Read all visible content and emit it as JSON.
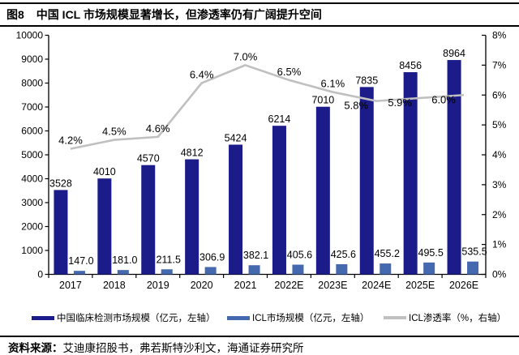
{
  "header": {
    "figure_label": "图8",
    "title": "中国 ICL 市场规模显著增长，但渗透率仍有广阔提升空间"
  },
  "footer": {
    "source_label": "资料来源：",
    "source_text": "艾迪康招股书，弗若斯特沙利文，海通证券研究所"
  },
  "colors": {
    "dark_bar": "#1b1b8a",
    "light_bar": "#4569ae",
    "trend_line": "#c0c0c0",
    "text": "#000000",
    "rule": "#000000"
  },
  "chart_data": {
    "type": "bar",
    "subtype": "grouped-bar-with-line-overlay",
    "categories": [
      "2017",
      "2018",
      "2019",
      "2020",
      "2021",
      "2022E",
      "2023E",
      "2024E",
      "2025E",
      "2026E"
    ],
    "series": [
      {
        "name": "中国临床检测市场规模（亿元，左轴）",
        "type": "bar",
        "axis": "left",
        "values": [
          3528,
          4010,
          4570,
          4812,
          5424,
          6214,
          7010,
          7835,
          8456,
          8964
        ],
        "labels": [
          "3528",
          "4010",
          "4570",
          "4812",
          "5424",
          "6214",
          "7010",
          "7835",
          "8456",
          "8964"
        ]
      },
      {
        "name": "ICL市场规模（亿元，左轴）",
        "type": "bar",
        "axis": "left",
        "values": [
          147.0,
          181.0,
          211.5,
          306.9,
          382.1,
          405.6,
          425.6,
          455.2,
          495.5,
          535.5
        ],
        "labels": [
          "147.0",
          "181.0",
          "211.5",
          "306.9",
          "382.1",
          "405.6",
          "425.6",
          "455.2",
          "495.5",
          "535.5"
        ]
      },
      {
        "name": "ICL渗透率（%，右轴）",
        "type": "line",
        "axis": "right",
        "values": [
          4.2,
          4.5,
          4.6,
          6.4,
          7.0,
          6.5,
          6.1,
          5.8,
          5.9,
          6.0
        ],
        "labels": [
          "4.2%",
          "4.5%",
          "4.6%",
          "6.4%",
          "7.0%",
          "6.5%",
          "6.1%",
          "5.8%",
          "5.9%",
          "6.0%"
        ],
        "labels_below_indices": [
          7,
          8,
          9
        ]
      }
    ],
    "left_axis": {
      "min": 0,
      "max": 10000,
      "step": 1000,
      "tick_labels": [
        "0",
        "1000",
        "2000",
        "3000",
        "4000",
        "5000",
        "6000",
        "7000",
        "8000",
        "9000",
        "10000"
      ]
    },
    "right_axis": {
      "min": 0,
      "max": 8,
      "step": 1,
      "tick_labels": [
        "0%",
        "1%",
        "2%",
        "3%",
        "4%",
        "5%",
        "6%",
        "7%",
        "8%"
      ]
    },
    "grid": false,
    "legend_position": "bottom"
  }
}
